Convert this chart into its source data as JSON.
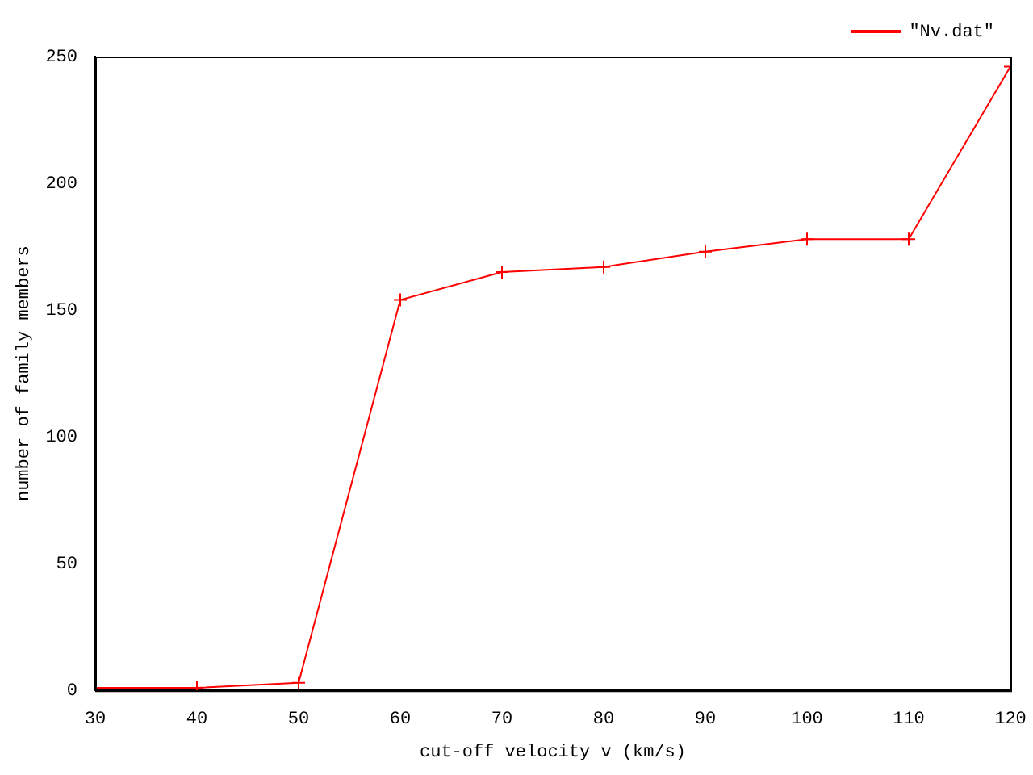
{
  "chart_data": {
    "type": "line",
    "xlabel": "cut-off velocity v (km/s)",
    "ylabel": "number of family members",
    "x": [
      30,
      40,
      50,
      60,
      70,
      80,
      90,
      100,
      110,
      120
    ],
    "series": [
      {
        "name": "\"Nv.dat\"",
        "color": "#ff0000",
        "values": [
          1,
          1,
          3,
          154,
          165,
          167,
          173,
          178,
          178,
          246
        ]
      }
    ],
    "xlim": [
      30,
      120
    ],
    "xticks": [
      30,
      40,
      50,
      60,
      70,
      80,
      90,
      100,
      110,
      120
    ],
    "ylim": [
      0,
      250
    ],
    "yticks": [
      0,
      50,
      100,
      150,
      200,
      250
    ],
    "grid": false,
    "legend": "top right",
    "marker": "cross",
    "line_style": "solid"
  }
}
